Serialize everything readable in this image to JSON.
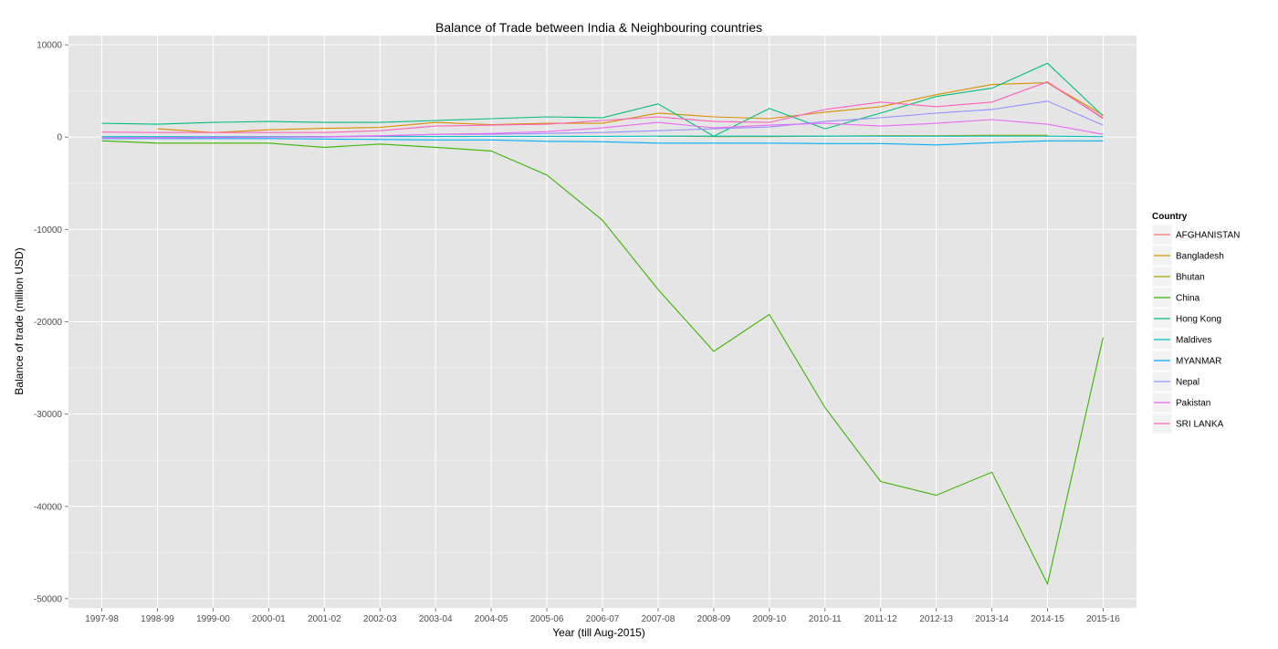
{
  "chart_data": {
    "type": "line",
    "title": "Balance of Trade between India & Neighbouring countries",
    "xlabel": "Year (till Aug-2015)",
    "ylabel": "Balance of trade (million USD)",
    "ylim": [
      -51000,
      11000
    ],
    "yticks": [
      10000,
      0,
      -10000,
      -20000,
      -30000,
      -40000,
      -50000
    ],
    "ytick_labels": [
      "10000",
      "0",
      "-10000",
      "-20000",
      "-30000",
      "-40000",
      "-50000"
    ],
    "grid": true,
    "legend_placement": "right",
    "legend_title": "Country",
    "categories": [
      "1997-98",
      "1998-99",
      "1999-00",
      "2000-01",
      "2001-02",
      "2002-03",
      "2003-04",
      "2004-05",
      "2005-06",
      "2006-07",
      "2007-08",
      "2008-09",
      "2009-10",
      "2010-11",
      "2011-12",
      "2012-13",
      "2013-14",
      "2014-15",
      "2015-16"
    ],
    "series": [
      {
        "name": "AFGHANISTAN",
        "color": "#F8766D",
        "values": [
          null,
          null,
          null,
          null,
          null,
          null,
          null,
          null,
          null,
          null,
          null,
          null,
          null,
          null,
          null,
          null,
          null,
          5900,
          2100
        ]
      },
      {
        "name": "Bangladesh",
        "color": "#D89000",
        "values": [
          null,
          900,
          500,
          800,
          950,
          1050,
          1600,
          1350,
          1500,
          1500,
          2600,
          2200,
          2000,
          2700,
          3300,
          4600,
          5700,
          5900,
          2400
        ]
      },
      {
        "name": "Bhutan",
        "color": "#A3A500",
        "values": [
          null,
          null,
          null,
          null,
          null,
          null,
          null,
          null,
          null,
          null,
          100,
          50,
          50,
          100,
          150,
          150,
          200,
          200,
          null
        ]
      },
      {
        "name": "China",
        "color": "#39B600",
        "values": [
          -400,
          -650,
          -650,
          -650,
          -1100,
          -750,
          -1100,
          -1500,
          -4100,
          -9000,
          -16500,
          -23200,
          -19200,
          -29300,
          -37300,
          -38800,
          -36300,
          -48400,
          -21700
        ]
      },
      {
        "name": "Hong Kong",
        "color": "#00BF7D",
        "values": [
          1500,
          1400,
          1600,
          1700,
          1600,
          1600,
          1800,
          2000,
          2200,
          2100,
          3600,
          100,
          3100,
          900,
          2600,
          4400,
          5300,
          8000,
          2300
        ]
      },
      {
        "name": "Maldives",
        "color": "#00BFC4",
        "values": [
          50,
          50,
          50,
          50,
          60,
          60,
          60,
          70,
          80,
          80,
          100,
          100,
          100,
          100,
          100,
          100,
          100,
          100,
          50
        ]
      },
      {
        "name": "MYANMAR",
        "color": "#00B0F6",
        "values": [
          -150,
          -150,
          -150,
          -150,
          -200,
          -250,
          -300,
          -300,
          -450,
          -500,
          -650,
          -650,
          -650,
          -700,
          -700,
          -850,
          -600,
          -400,
          -400
        ]
      },
      {
        "name": "Nepal",
        "color": "#9590FF",
        "values": [
          -50,
          -50,
          0,
          0,
          0,
          100,
          300,
          300,
          400,
          500,
          700,
          900,
          1100,
          1700,
          2100,
          2600,
          3000,
          3900,
          1300
        ]
      },
      {
        "name": "Pakistan",
        "color": "#E76BF3",
        "values": [
          -100,
          -100,
          -50,
          0,
          50,
          150,
          300,
          400,
          600,
          1000,
          1600,
          1000,
          1300,
          1500,
          1200,
          1500,
          1900,
          1400,
          300
        ]
      },
      {
        "name": "SRI LANKA",
        "color": "#FF62BC",
        "values": [
          550,
          500,
          500,
          500,
          500,
          700,
          1200,
          1300,
          1400,
          1800,
          2200,
          1700,
          1600,
          3000,
          3800,
          3300,
          3800,
          6000,
          2000
        ]
      }
    ]
  }
}
